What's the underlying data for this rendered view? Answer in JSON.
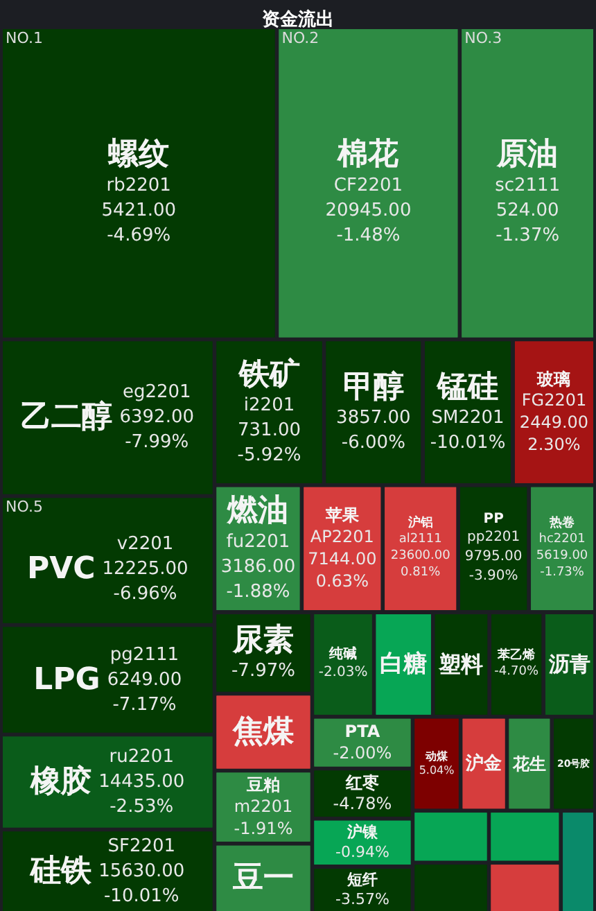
{
  "chart_data": {
    "type": "other",
    "title": "资金流出",
    "categories": [
      "螺纹",
      "棉花",
      "原油",
      "乙二醇",
      "PVC",
      "LPG",
      "橡胶",
      "硅铁",
      "铁矿",
      "甲醇",
      "锰硅",
      "玻璃",
      "燃油",
      "苹果",
      "沪铝",
      "PP",
      "热卷",
      "尿素",
      "焦煤",
      "豆粕",
      "豆一",
      "纯碱",
      "白糖",
      "塑料",
      "苯乙烯",
      "沥青",
      "PTA",
      "红枣",
      "沪镍",
      "短纤",
      "动煤",
      "沪金",
      "花生",
      "20号胶",
      null,
      null,
      null,
      null,
      null
    ],
    "values": [
      -4.69,
      -1.48,
      -1.37,
      -7.99,
      -6.96,
      -7.17,
      -2.53,
      -10.01,
      -5.92,
      -6,
      -10.01,
      2.3,
      -1.88,
      0.63,
      0.81,
      -3.9,
      -1.73,
      -7.97,
      null,
      -1.91,
      null,
      -2.03,
      null,
      null,
      -4.7,
      null,
      -2,
      -4.78,
      -0.94,
      -3.57,
      5.04,
      null,
      null,
      null,
      null,
      null,
      null,
      null,
      null
    ],
    "value_labels": [
      "rb2201\n5421.00\n-4.69%",
      "CF2201\n20945.00\n-1.48%",
      "sc2111\n524.00\n-1.37%",
      "eg2201\n6392.00\n-7.99%",
      "v2201\n12225.00\n-6.96%",
      "pg2111\n6249.00\n-7.17%",
      "ru2201\n14435.00\n-2.53%",
      "SF2201\n15630.00\n-10.01%",
      "i2201\n731.00\n-5.92%",
      "3857.00\n-6.00%",
      "SM2201\n-10.01%",
      "FG2201\n2449.00\n2.30%",
      "fu2201\n3186.00\n-1.88%",
      "AP2201\n7144.00\n0.63%",
      "al2111\n23600.00\n0.81%",
      "pp2201\n9795.00\n-3.90%",
      "hc2201\n5619.00\n-1.73%",
      "-7.97%",
      null,
      "m2201\n-1.91%",
      null,
      "-2.03%",
      null,
      null,
      "-4.70%",
      null,
      "-2.00%",
      "-4.78%",
      "-0.94%",
      "-3.57%",
      "5.04%",
      null,
      null,
      null,
      null,
      null,
      null,
      null,
      null
    ],
    "colors": [
      "#033a02",
      "#2e8b44",
      "#2e8b44",
      "#033a02",
      "#033a02",
      "#033a02",
      "#0a5c1a",
      "#033a02",
      "#033a02",
      "#033a02",
      "#033a02",
      "#a51414",
      "#2e8b44",
      "#d63d3d",
      "#d63d3d",
      "#033a02",
      "#2e8b44",
      "#033a02",
      "#d63d3d",
      "#2e8b44",
      "#2e8b44",
      "#0a5c1a",
      "#07a655",
      "#033a02",
      "#033a02",
      "#0a5c1a",
      "#2e8b44",
      "#033a02",
      "#07a655",
      "#033a02",
      "#7d0000",
      "#d63d3d",
      "#2e8b44",
      "#033a02",
      "#07a655",
      "#033a02",
      "#07a655",
      "#d63d3d",
      "#0a8a6a"
    ],
    "annotations": [
      {
        "text": "NO.1",
        "x": "螺纹"
      },
      {
        "text": "NO.2",
        "x": "棉花"
      },
      {
        "text": "NO.3",
        "x": "原油"
      },
      {
        "text": "NO.5",
        "x": "PVC"
      }
    ]
  }
}
